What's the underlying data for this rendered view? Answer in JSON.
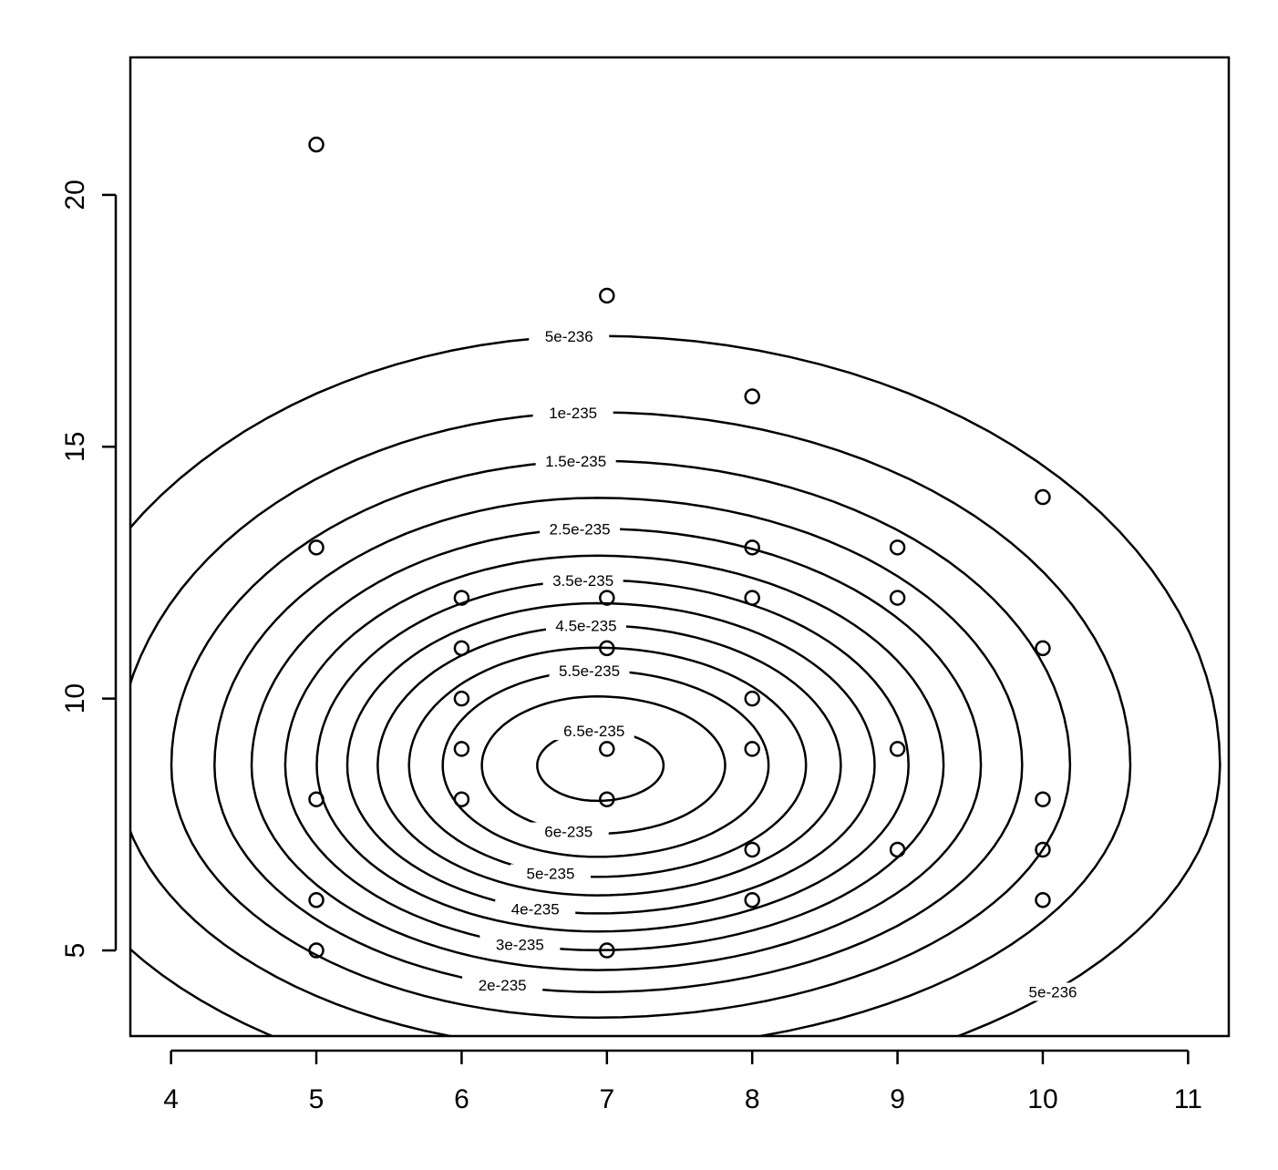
{
  "chart_data": {
    "type": "scatter",
    "x": [
      5,
      7,
      8,
      10,
      5,
      8,
      9,
      6,
      7,
      8,
      9,
      6,
      7,
      10,
      6,
      8,
      6,
      7,
      8,
      9,
      5,
      6,
      7,
      10,
      8,
      9,
      10,
      5,
      8,
      10,
      5,
      7
    ],
    "y": [
      21,
      18,
      16,
      14,
      13,
      13,
      13,
      12,
      12,
      12,
      12,
      11,
      11,
      11,
      10,
      10,
      9,
      9,
      9,
      9,
      8,
      8,
      8,
      8,
      7,
      7,
      7,
      6,
      6,
      6,
      5,
      5
    ],
    "xlim": [
      3.72,
      11.28
    ],
    "ylim": [
      3.3,
      22.73
    ],
    "xticks": [
      4,
      5,
      6,
      7,
      8,
      9,
      10,
      11
    ],
    "yticks": [
      5,
      10,
      15,
      20
    ],
    "color": "#000000",
    "contour_levels": [
      5e-236,
      1e-235,
      1.5e-235,
      2e-235,
      2.5e-235,
      3e-235,
      3.5e-235,
      4e-235,
      4.5e-235,
      5e-235,
      5.5e-235,
      6e-235,
      6.5e-235
    ]
  }
}
